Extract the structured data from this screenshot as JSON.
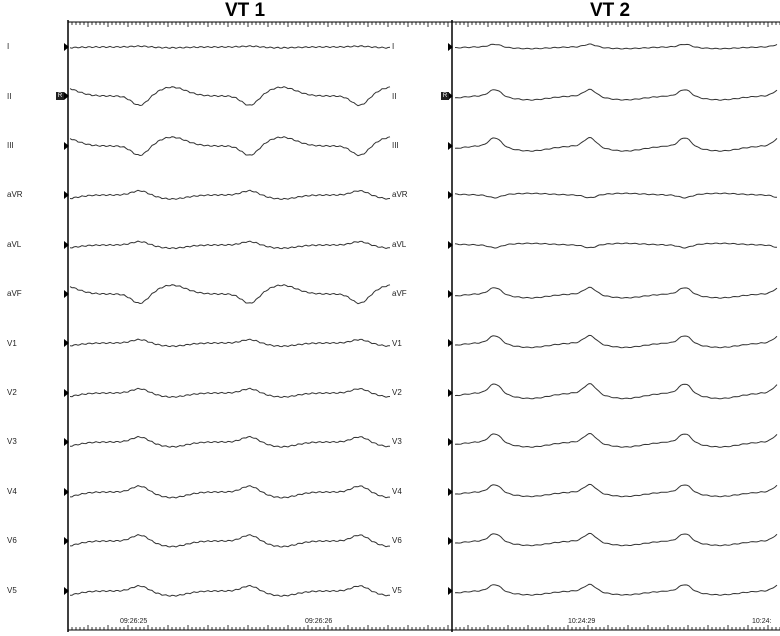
{
  "panels": [
    {
      "title": "VT 1",
      "leads": [
        "I",
        "II",
        "III",
        "aVR",
        "aVL",
        "aVF",
        "V1",
        "V2",
        "V3",
        "V4",
        "V6",
        "V5"
      ],
      "timestamps": [
        "09:26:25",
        "09:26:26"
      ],
      "reference_lead_marker": "R"
    },
    {
      "title": "VT 2",
      "leads_right_labels": [
        "I",
        "II",
        "III",
        "aVR",
        "aVL",
        "aVF",
        "V1",
        "V2",
        "V3",
        "V4",
        "V6",
        "V5"
      ],
      "timestamps": [
        "10:24:29",
        "10:24:"
      ],
      "reference_lead_marker": "R"
    }
  ],
  "colors": {
    "trace": "#333333",
    "grid_line": "#000000",
    "background": "#ffffff"
  }
}
